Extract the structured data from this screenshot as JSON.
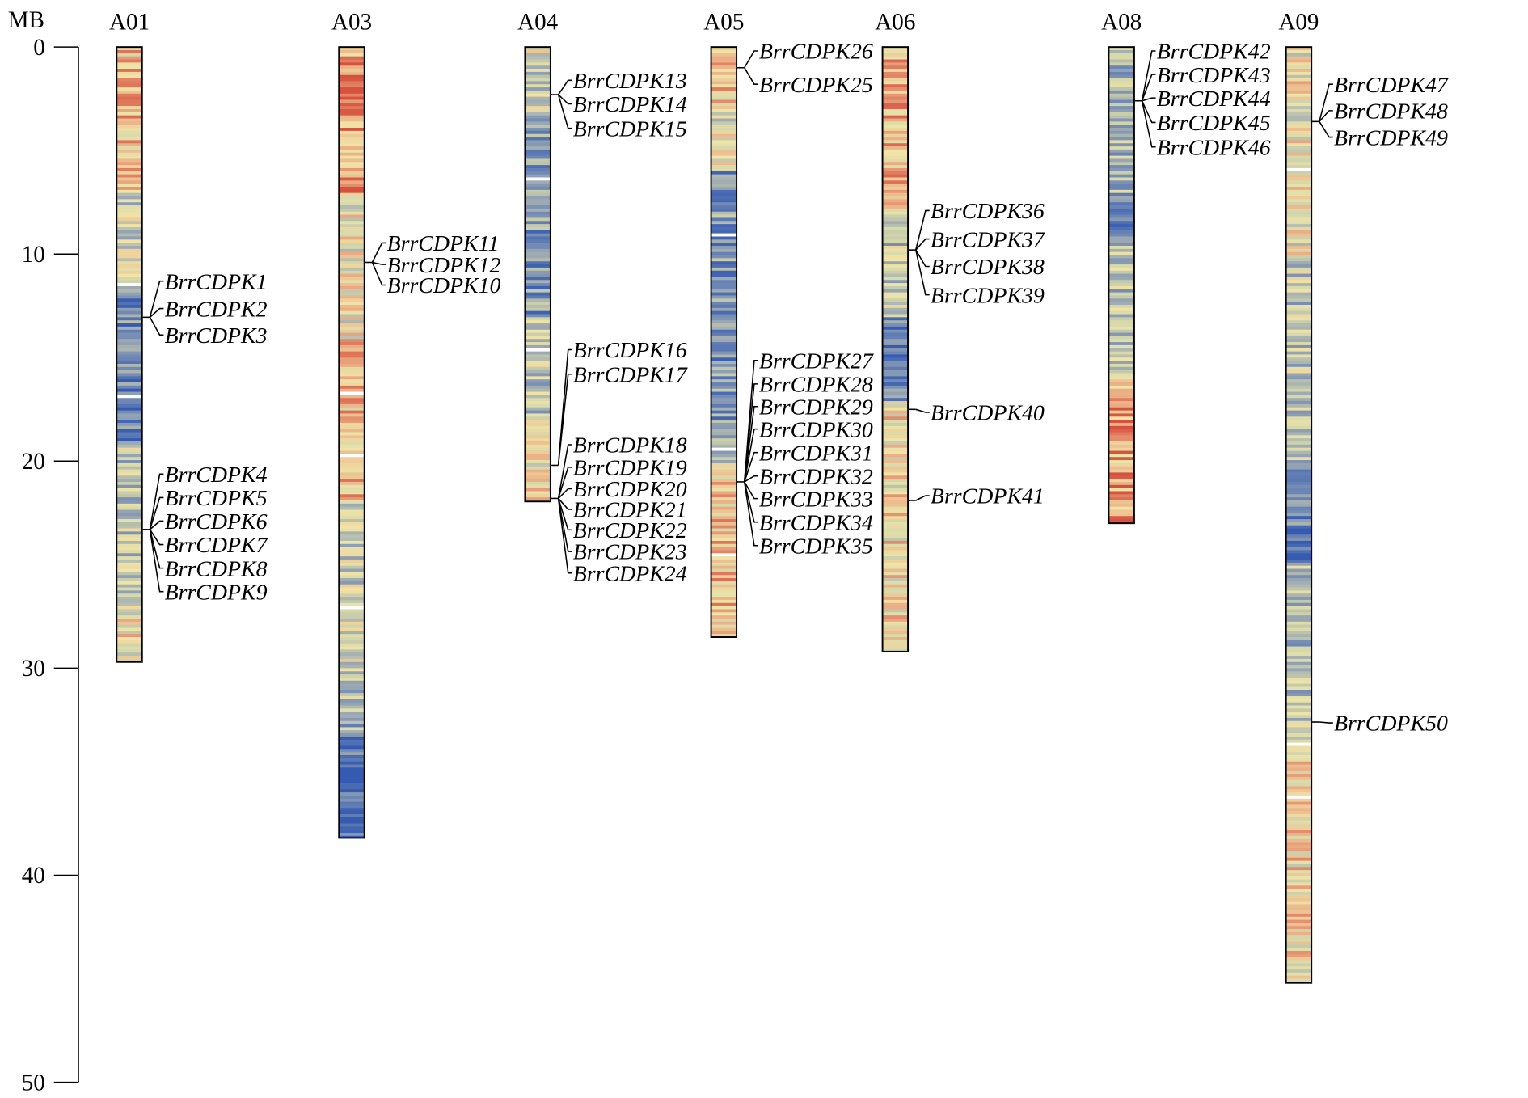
{
  "axis": {
    "unit": "MB",
    "ticks": [
      0,
      10,
      20,
      30,
      40,
      50
    ]
  },
  "chromosomes": [
    {
      "name": "A01",
      "length_mb": 29.7,
      "gene_groups": [
        {
          "pos_mb": 13.05,
          "genes": [
            "BrrCDPK1",
            "BrrCDPK2",
            "BrrCDPK3"
          ]
        },
        {
          "pos_mb": 23.3,
          "genes": [
            "BrrCDPK4",
            "BrrCDPK5",
            "BrrCDPK6",
            "BrrCDPK7",
            "BrrCDPK8",
            "BrrCDPK9"
          ]
        }
      ]
    },
    {
      "name": "A03",
      "length_mb": 38.2,
      "gene_groups": [
        {
          "pos_mb": 10.4,
          "genes": [
            "BrrCDPK11",
            "BrrCDPK12",
            "BrrCDPK10"
          ]
        }
      ]
    },
    {
      "name": "A04",
      "length_mb": 21.95,
      "gene_groups": [
        {
          "pos_mb": 2.3,
          "genes": [
            "BrrCDPK13",
            "BrrCDPK14",
            "BrrCDPK15"
          ]
        },
        {
          "pos_mb": 20.2,
          "genes": [
            "BrrCDPK16",
            "BrrCDPK17"
          ]
        },
        {
          "pos_mb": 21.8,
          "genes": [
            "BrrCDPK18",
            "BrrCDPK19",
            "BrrCDPK20",
            "BrrCDPK21",
            "BrrCDPK22",
            "BrrCDPK23",
            "BrrCDPK24"
          ]
        }
      ]
    },
    {
      "name": "A05",
      "length_mb": 28.5,
      "gene_groups": [
        {
          "pos_mb": 1.0,
          "genes": [
            "BrrCDPK26",
            "BrrCDPK25"
          ]
        },
        {
          "pos_mb": 21.0,
          "genes": [
            "BrrCDPK27",
            "BrrCDPK28",
            "BrrCDPK29",
            "BrrCDPK30",
            "BrrCDPK31",
            "BrrCDPK32",
            "BrrCDPK33",
            "BrrCDPK34",
            "BrrCDPK35"
          ]
        }
      ]
    },
    {
      "name": "A06",
      "length_mb": 29.2,
      "gene_groups": [
        {
          "pos_mb": 9.8,
          "genes": [
            "BrrCDPK36",
            "BrrCDPK37",
            "BrrCDPK38",
            "BrrCDPK39"
          ]
        },
        {
          "pos_mb": 17.5,
          "genes": [
            "BrrCDPK40"
          ]
        },
        {
          "pos_mb": 21.9,
          "genes": [
            "BrrCDPK41"
          ]
        }
      ]
    },
    {
      "name": "A08",
      "length_mb": 23.0,
      "gene_groups": [
        {
          "pos_mb": 2.6,
          "genes": [
            "BrrCDPK42",
            "BrrCDPK43",
            "BrrCDPK44",
            "BrrCDPK45",
            "BrrCDPK46"
          ]
        }
      ]
    },
    {
      "name": "A09",
      "length_mb": 45.2,
      "gene_groups": [
        {
          "pos_mb": 3.6,
          "genes": [
            "BrrCDPK47",
            "BrrCDPK48",
            "BrrCDPK49"
          ]
        },
        {
          "pos_mb": 32.6,
          "genes": [
            "BrrCDPK50"
          ]
        }
      ]
    }
  ]
}
